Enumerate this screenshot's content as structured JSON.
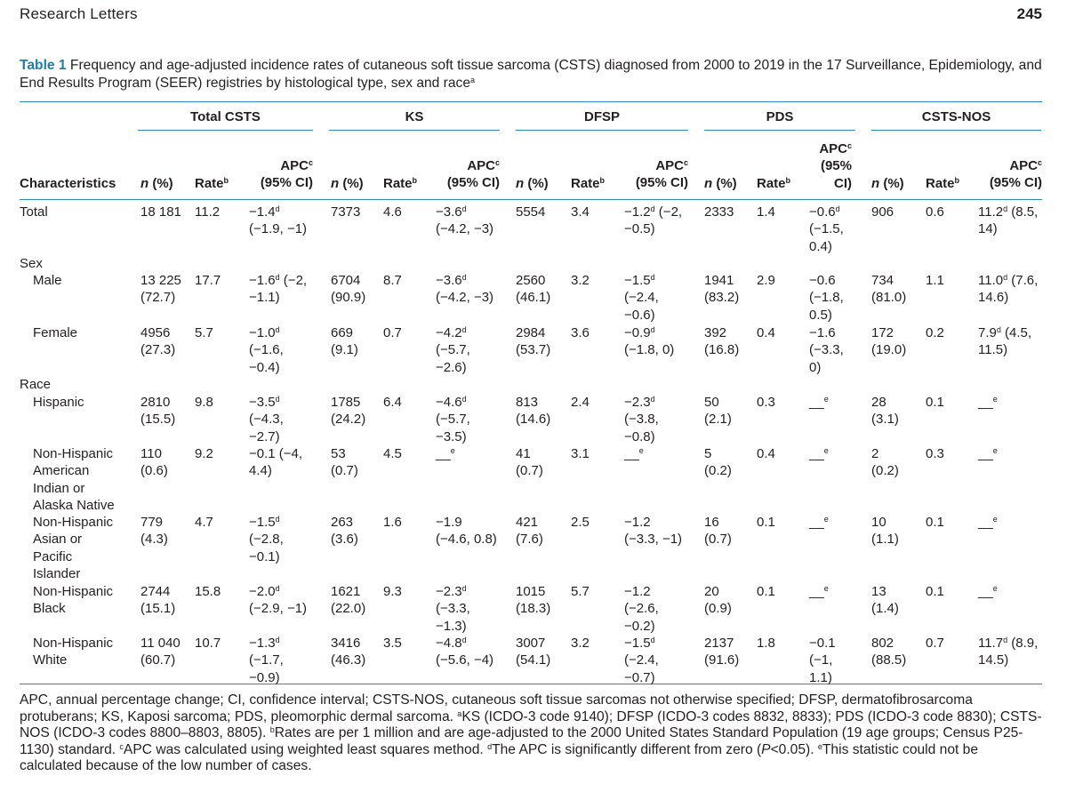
{
  "header": {
    "journal": "Research Letters",
    "page": "245"
  },
  "caption": {
    "label": "Table 1",
    "text": "Frequency and age-adjusted incidence rates of cutaneous soft tissue sarcoma (CSTS) diagnosed from 2000 to 2019 in the 17 Surveillance, Epidemiology, and End Results Program (SEER) registries by histological type, sex and race",
    "sup": "a"
  },
  "groups": [
    "Total CSTS",
    "KS",
    "DFSP",
    "PDS",
    "CSTS-NOS"
  ],
  "columns": {
    "characteristics": "Characteristics",
    "n": "n",
    "n_suffix": "(%)",
    "rate": "Rate",
    "rate_sup": "b",
    "apc": "APC",
    "apc_sup": "c",
    "ci": "(95% CI)",
    "pds_ci_1": "(95%",
    "pds_ci_2": "CI)"
  },
  "rows": [
    {
      "label": "Total",
      "cells": [
        "18 181",
        "11.2",
        "−1.4d\n(−1.9, −1)",
        "7373",
        "4.6",
        "−3.6d\n(−4.2, −3)",
        "5554",
        "3.4",
        "−1.2d (−2,\n−0.5)",
        "2333",
        "1.4",
        "−0.6d\n(−1.5,\n0.4)",
        "906",
        "0.6",
        "11.2d (8.5,\n14)"
      ]
    },
    {
      "label": "Sex",
      "section": true
    },
    {
      "label": "Male",
      "cells": [
        "13 225\n(72.7)",
        "17.7",
        "−1.6d (−2,\n−1.1)",
        "6704\n(90.9)",
        "8.7",
        "−3.6d\n(−4.2, −3)",
        "2560\n(46.1)",
        "3.2",
        "−1.5d\n(−2.4,\n−0.6)",
        "1941\n(83.2)",
        "2.9",
        "−0.6\n(−1.8,\n0.5)",
        "734\n(81.0)",
        "1.1",
        "11.0d (7.6,\n14.6)"
      ]
    },
    {
      "label": "Female",
      "cells": [
        "4956\n(27.3)",
        "5.7",
        "−1.0d\n(−1.6,\n−0.4)",
        "669\n(9.1)",
        "0.7",
        "−4.2d\n(−5.7,\n−2.6)",
        "2984\n(53.7)",
        "3.6",
        "−0.9d\n(−1.8, 0)",
        "392\n(16.8)",
        "0.4",
        "−1.6\n(−3.3,\n0)",
        "172\n(19.0)",
        "0.2",
        "7.9d (4.5,\n11.5)"
      ]
    },
    {
      "label": "Race",
      "section": true
    },
    {
      "label": "Hispanic",
      "cells": [
        "2810\n(15.5)",
        "9.8",
        "−3.5d\n(−4.3,\n−2.7)",
        "1785\n(24.2)",
        "6.4",
        "−4.6d\n(−5.7,\n−3.5)",
        "813\n(14.6)",
        "2.4",
        "−2.3d\n(−3.8,\n−0.8)",
        "50\n(2.1)",
        "0.3",
        "__e",
        "28\n(3.1)",
        "0.1",
        "__e"
      ]
    },
    {
      "label": "Non-Hispanic\nAmerican\nIndian or\nAlaska Native",
      "cells": [
        "110\n(0.6)",
        "9.2",
        "−0.1 (−4,\n4.4)",
        "53\n(0.7)",
        "4.5",
        "__e",
        "41\n(0.7)",
        "3.1",
        "__e",
        "5\n(0.2)",
        "0.4",
        "__e",
        "2\n(0.2)",
        "0.3",
        "__e"
      ]
    },
    {
      "label": "Non-Hispanic\nAsian or\nPacific\nIslander",
      "cells": [
        "779\n(4.3)",
        "4.7",
        "−1.5d\n(−2.8,\n−0.1)",
        "263\n(3.6)",
        "1.6",
        "−1.9\n(−4.6, 0.8)",
        "421\n(7.6)",
        "2.5",
        "−1.2\n(−3.3, −1)",
        "16\n(0.7)",
        "0.1",
        "__e",
        "10\n(1.1)",
        "0.1",
        "__e"
      ]
    },
    {
      "label": "Non-Hispanic\nBlack",
      "cells": [
        "2744\n(15.1)",
        "15.8",
        "−2.0d\n(−2.9, −1)",
        "1621\n(22.0)",
        "9.3",
        "−2.3d\n(−3.3,\n−1.3)",
        "1015\n(18.3)",
        "5.7",
        "−1.2\n(−2.6,\n−0.2)",
        "20\n(0.9)",
        "0.1",
        "__e",
        "13\n(1.4)",
        "0.1",
        "__e"
      ]
    },
    {
      "label": "Non-Hispanic\nWhite",
      "cells": [
        "11 040\n(60.7)",
        "10.7",
        "−1.3d\n(−1.7,\n−0.9)",
        "3416\n(46.3)",
        "3.5",
        "−4.8d\n(−5.6, −4)",
        "3007\n(54.1)",
        "3.2",
        "−1.5d\n(−2.4,\n−0.7)",
        "2137\n(91.6)",
        "1.8",
        "−0.1\n(−1,\n1.1)",
        "802\n(88.5)",
        "0.7",
        "11.7d (8.9,\n14.5)"
      ]
    }
  ],
  "footnote": "APC, annual percentage change; CI, confidence interval; CSTS-NOS, cutaneous soft tissue sarcomas not otherwise specified; DFSP, dermatofibrosarcoma protuberans; KS, Kaposi sarcoma; PDS, pleomorphic dermal sarcoma. aKS (ICDO-3 code 9140); DFSP (ICDO-3 codes 8832, 8833); PDS (ICDO-3 code 8830); CSTS-NOS (ICDO-3 codes 8800–8803, 8805). bRates are per 1 million and are age-adjusted to the 2000 United States Standard Population (19 age groups; Census P25-1130) standard. cAPC was calculated using weighted least squares method. dThe APC is significantly different from zero (P<0.05). eThis statistic could not be calculated because of the low number of cases."
}
